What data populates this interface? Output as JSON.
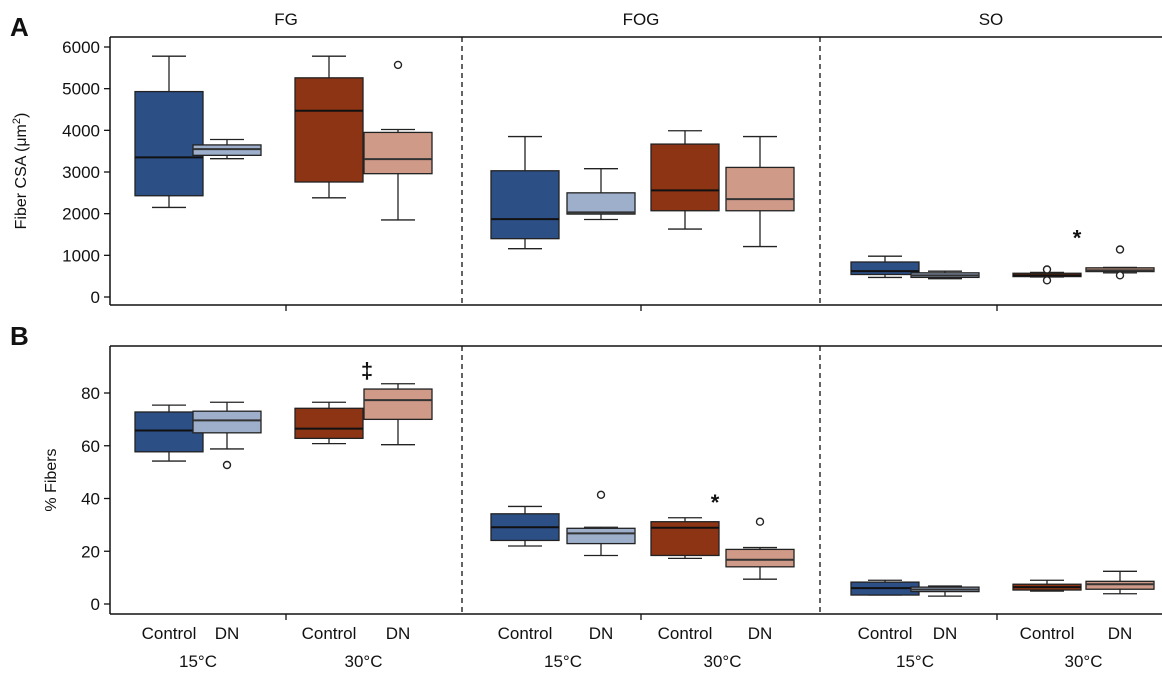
{
  "chart_data": [
    {
      "type": "box",
      "panel_letter": "A",
      "ylabel_pre": "Fiber CSA (",
      "ylabel_unit": "μm",
      "ylabel_sup": "2",
      "ylabel_post": ")",
      "ylim": [
        -250,
        6200
      ],
      "yticks": [
        0,
        1000,
        2000,
        3000,
        4000,
        5000,
        6000
      ],
      "facets": [
        {
          "label": "FG",
          "groups": [
            {
              "temp": "15°C",
              "treatment": "Control",
              "min": 2150,
              "q1": 2430,
              "median": 3350,
              "q3": 4930,
              "max": 5780,
              "outliers": [],
              "annotation": ""
            },
            {
              "temp": "15°C",
              "treatment": "DN",
              "min": 3320,
              "q1": 3400,
              "median": 3550,
              "q3": 3650,
              "max": 3780,
              "outliers": [],
              "annotation": ""
            },
            {
              "temp": "30°C",
              "treatment": "Control",
              "min": 2380,
              "q1": 2760,
              "median": 4470,
              "q3": 5260,
              "max": 5780,
              "outliers": [],
              "annotation": ""
            },
            {
              "temp": "30°C",
              "treatment": "DN",
              "min": 1850,
              "q1": 2960,
              "median": 3310,
              "q3": 3950,
              "max": 4020,
              "outliers": [
                5570
              ],
              "annotation": ""
            }
          ]
        },
        {
          "label": "FOG",
          "groups": [
            {
              "temp": "15°C",
              "treatment": "Control",
              "min": 1160,
              "q1": 1400,
              "median": 1870,
              "q3": 3030,
              "max": 3850,
              "outliers": [],
              "annotation": ""
            },
            {
              "temp": "15°C",
              "treatment": "DN",
              "min": 1860,
              "q1": 1990,
              "median": 2030,
              "q3": 2500,
              "max": 3080,
              "outliers": [],
              "annotation": ""
            },
            {
              "temp": "30°C",
              "treatment": "Control",
              "min": 1630,
              "q1": 2070,
              "median": 2560,
              "q3": 3670,
              "max": 3990,
              "outliers": [],
              "annotation": ""
            },
            {
              "temp": "30°C",
              "treatment": "DN",
              "min": 1210,
              "q1": 2070,
              "median": 2350,
              "q3": 3110,
              "max": 3850,
              "outliers": [],
              "annotation": ""
            }
          ]
        },
        {
          "label": "SO",
          "groups": [
            {
              "temp": "15°C",
              "treatment": "Control",
              "min": 470,
              "q1": 540,
              "median": 620,
              "q3": 840,
              "max": 980,
              "outliers": [],
              "annotation": ""
            },
            {
              "temp": "15°C",
              "treatment": "DN",
              "min": 440,
              "q1": 470,
              "median": 520,
              "q3": 580,
              "max": 620,
              "outliers": [],
              "annotation": ""
            },
            {
              "temp": "30°C",
              "treatment": "Control",
              "min": 480,
              "q1": 490,
              "median": 520,
              "q3": 570,
              "max": 590,
              "outliers": [
                660,
                400
              ],
              "annotation": "*"
            },
            {
              "temp": "30°C",
              "treatment": "DN",
              "min": 580,
              "q1": 610,
              "median": 640,
              "q3": 700,
              "max": 710,
              "outliers": [
                1140,
                520
              ],
              "annotation": ""
            }
          ]
        }
      ]
    },
    {
      "type": "box",
      "panel_letter": "B",
      "ylabel": "% Fibers",
      "ylim": [
        -3,
        93
      ],
      "yticks": [
        0,
        20,
        40,
        60,
        80
      ],
      "facets": [
        {
          "label": "FG",
          "groups": [
            {
              "temp": "15°C",
              "treatment": "Control",
              "min": 54.2,
              "q1": 57.7,
              "median": 65.8,
              "q3": 72.8,
              "max": 75.4,
              "outliers": [],
              "annotation": ""
            },
            {
              "temp": "15°C",
              "treatment": "DN",
              "min": 58.8,
              "q1": 64.9,
              "median": 69.6,
              "q3": 73.1,
              "max": 76.5,
              "outliers": [
                52.7
              ],
              "annotation": ""
            },
            {
              "temp": "30°C",
              "treatment": "Control",
              "min": 60.8,
              "q1": 62.8,
              "median": 66.5,
              "q3": 74.2,
              "max": 76.5,
              "outliers": [],
              "annotation": "‡"
            },
            {
              "temp": "30°C",
              "treatment": "DN",
              "min": 60.4,
              "q1": 70.0,
              "median": 77.3,
              "q3": 81.5,
              "max": 83.5,
              "outliers": [],
              "annotation": ""
            }
          ]
        },
        {
          "label": "FOG",
          "groups": [
            {
              "temp": "15°C",
              "treatment": "Control",
              "min": 22.0,
              "q1": 24.1,
              "median": 29.1,
              "q3": 34.2,
              "max": 37.0,
              "outliers": [],
              "annotation": ""
            },
            {
              "temp": "15°C",
              "treatment": "DN",
              "min": 18.4,
              "q1": 22.9,
              "median": 26.8,
              "q3": 28.7,
              "max": 29.1,
              "outliers": [
                41.4
              ],
              "annotation": ""
            },
            {
              "temp": "30°C",
              "treatment": "Control",
              "min": 17.3,
              "q1": 18.4,
              "median": 28.9,
              "q3": 31.2,
              "max": 32.7,
              "outliers": [],
              "annotation": "*"
            },
            {
              "temp": "30°C",
              "treatment": "DN",
              "min": 9.4,
              "q1": 14.1,
              "median": 16.8,
              "q3": 20.7,
              "max": 21.4,
              "outliers": [
                31.2
              ],
              "annotation": ""
            }
          ]
        },
        {
          "label": "SO",
          "groups": [
            {
              "temp": "15°C",
              "treatment": "Control",
              "min": 3.4,
              "q1": 3.4,
              "median": 6.0,
              "q3": 8.3,
              "max": 9.0,
              "outliers": [],
              "annotation": ""
            },
            {
              "temp": "15°C",
              "treatment": "DN",
              "min": 3.0,
              "q1": 4.7,
              "median": 5.5,
              "q3": 6.4,
              "max": 6.8,
              "outliers": [],
              "annotation": ""
            },
            {
              "temp": "30°C",
              "treatment": "Control",
              "min": 4.9,
              "q1": 5.3,
              "median": 6.4,
              "q3": 7.5,
              "max": 9.0,
              "outliers": [],
              "annotation": ""
            },
            {
              "temp": "30°C",
              "treatment": "DN",
              "min": 3.9,
              "q1": 5.6,
              "median": 7.5,
              "q3": 8.6,
              "max": 12.4,
              "outliers": [],
              "annotation": ""
            }
          ]
        }
      ]
    }
  ],
  "colors": {
    "15°C Control": "#2c4f86",
    "15°C DN": "#9dafcb",
    "30°C Control": "#8d3415",
    "30°C DN": "#cf9a88"
  }
}
